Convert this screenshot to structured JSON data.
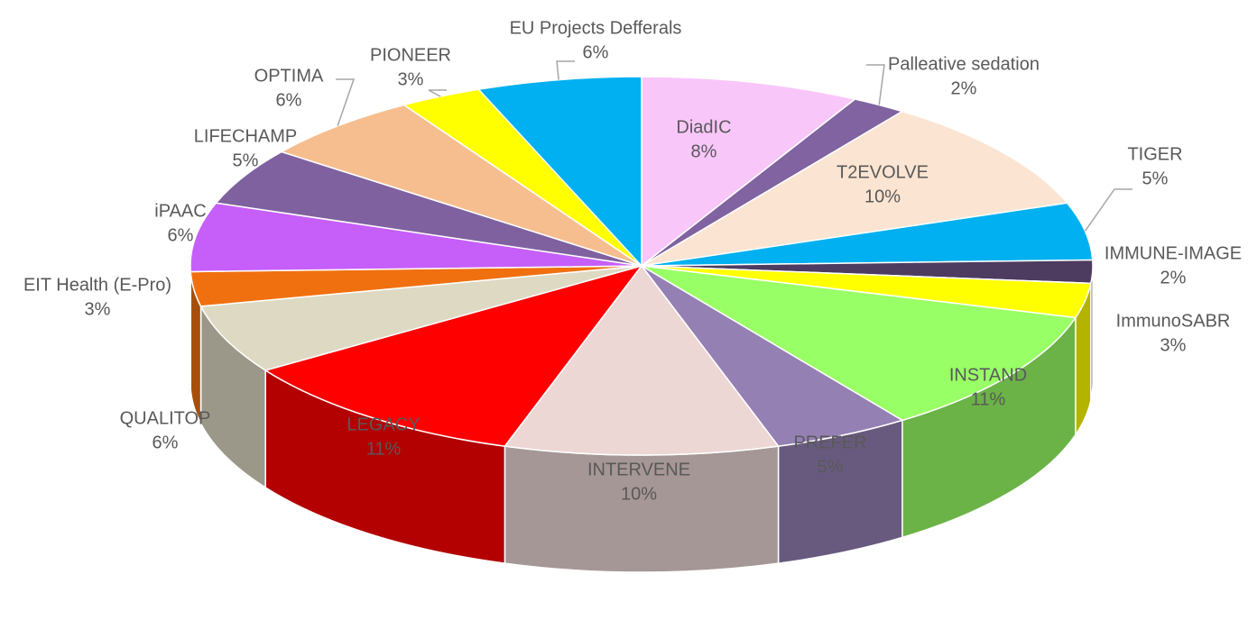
{
  "chart_data": {
    "type": "pie3d",
    "categories": [
      "DiadIC",
      "Palleative sedation",
      "T2EVOLVE",
      "TIGER",
      "IMMUNE-IMAGE",
      "ImmunoSABR",
      "INSTAND",
      "PREFER",
      "INTERVENE",
      "LEGACY",
      "QUALITOP",
      "EIT Health (E-Pro)",
      "iPAAC",
      "LIFECHAMP",
      "OPTIMA",
      "PIONEER",
      "EU Projects Defferals"
    ],
    "values": [
      8,
      2,
      10,
      5,
      2,
      3,
      11,
      5,
      10,
      11,
      6,
      3,
      6,
      5,
      6,
      3,
      6
    ],
    "value_labels": [
      "8%",
      "2%",
      "10%",
      "5%",
      "2%",
      "3%",
      "11%",
      "5%",
      "10%",
      "11%",
      "6%",
      "3%",
      "6%",
      "5%",
      "6%",
      "3%",
      "6%"
    ],
    "colors": [
      "#f9c6f9",
      "#8063a0",
      "#fbe4d2",
      "#00b0f0",
      "#4d3b60",
      "#ffff00",
      "#99ff66",
      "#9580b4",
      "#ecd7d5",
      "#ff0000",
      "#ddd9c3",
      "#f07010",
      "#c65ff9",
      "#7f61a0",
      "#f6be8f",
      "#ffff00",
      "#00b0f0"
    ]
  }
}
